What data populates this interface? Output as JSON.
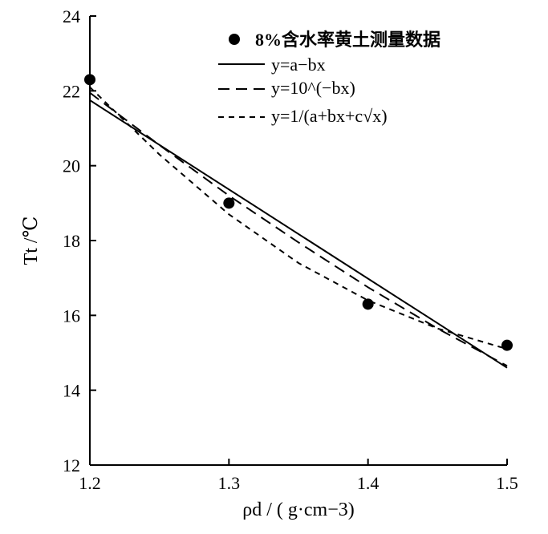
{
  "chart_data": {
    "type": "scatter",
    "title": "",
    "xlabel": "ρd / ( g·cm−3)",
    "ylabel": "Tt /℃",
    "xlim": [
      1.2,
      1.5
    ],
    "ylim": [
      12,
      24
    ],
    "x_ticks": [
      "1.2",
      "1.3",
      "1.4",
      "1.5"
    ],
    "y_ticks": [
      "12",
      "14",
      "16",
      "18",
      "20",
      "22",
      "24"
    ],
    "grid": false,
    "legend_position": "top-right",
    "series": [
      {
        "name": "8%含水率黄土测量数据",
        "kind": "points",
        "x": [
          1.2,
          1.3,
          1.4,
          1.5
        ],
        "y": [
          22.3,
          19.0,
          16.3,
          15.2
        ]
      },
      {
        "name": "y=a−bx",
        "kind": "solid",
        "x": [
          1.2,
          1.5
        ],
        "y": [
          21.75,
          14.6
        ]
      },
      {
        "name": "y=10^(−bx)",
        "kind": "long-dash",
        "x": [
          1.2,
          1.25,
          1.3,
          1.35,
          1.4,
          1.45,
          1.5
        ],
        "y": [
          21.95,
          20.55,
          19.2,
          17.95,
          16.75,
          15.65,
          14.65
        ]
      },
      {
        "name": "y=1/(a+bx+c√x)",
        "kind": "short-dash",
        "x": [
          1.2,
          1.25,
          1.3,
          1.35,
          1.4,
          1.45,
          1.5
        ],
        "y": [
          22.1,
          20.3,
          18.7,
          17.4,
          16.4,
          15.65,
          15.1
        ]
      }
    ]
  }
}
